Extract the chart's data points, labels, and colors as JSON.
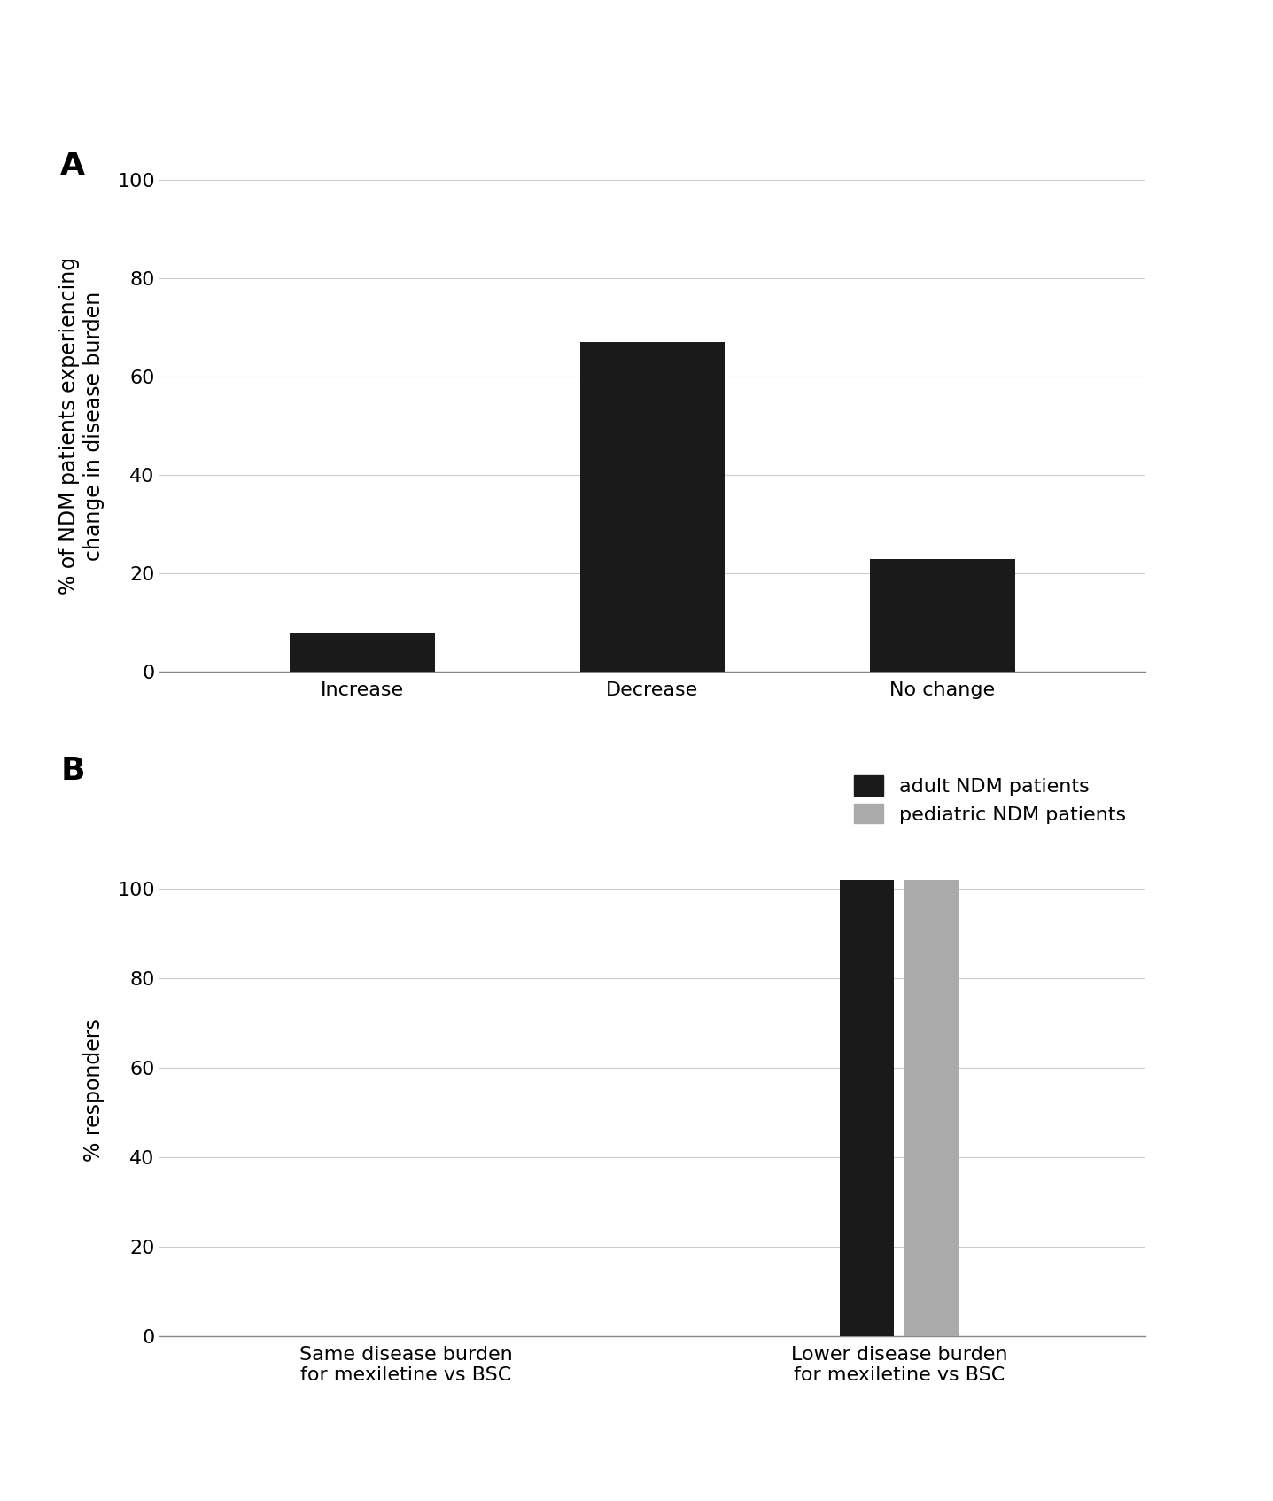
{
  "panel_A": {
    "categories": [
      "Increase",
      "Decrease",
      "No change"
    ],
    "values": [
      8,
      67,
      23
    ],
    "bar_color": "#1a1a1a",
    "ylabel": "% of NDM patients experiencing\nchange in disease burden",
    "ylim": [
      0,
      100
    ],
    "yticks": [
      0,
      20,
      40,
      60,
      80,
      100
    ],
    "bar_width": 0.5
  },
  "panel_B": {
    "group_labels": [
      "Same disease burden\nfor mexiletine vs BSC",
      "Lower disease burden\nfor mexiletine vs BSC"
    ],
    "adult_values": [
      0,
      102
    ],
    "pediatric_values": [
      0,
      102
    ],
    "adult_color": "#1a1a1a",
    "pediatric_color": "#aaaaaa",
    "ylabel": "% responders",
    "ylim": [
      0,
      110
    ],
    "yticks": [
      0,
      20,
      40,
      60,
      80,
      100
    ],
    "legend_labels": [
      "adult NDM patients",
      "pediatric NDM patients"
    ],
    "bar_width": 0.22,
    "bar_gap": 0.04
  },
  "panel_label_fontsize": 26,
  "axis_label_fontsize": 17,
  "tick_fontsize": 16,
  "legend_fontsize": 16,
  "background_color": "#ffffff",
  "grid_color": "#cccccc",
  "spine_color": "#888888"
}
